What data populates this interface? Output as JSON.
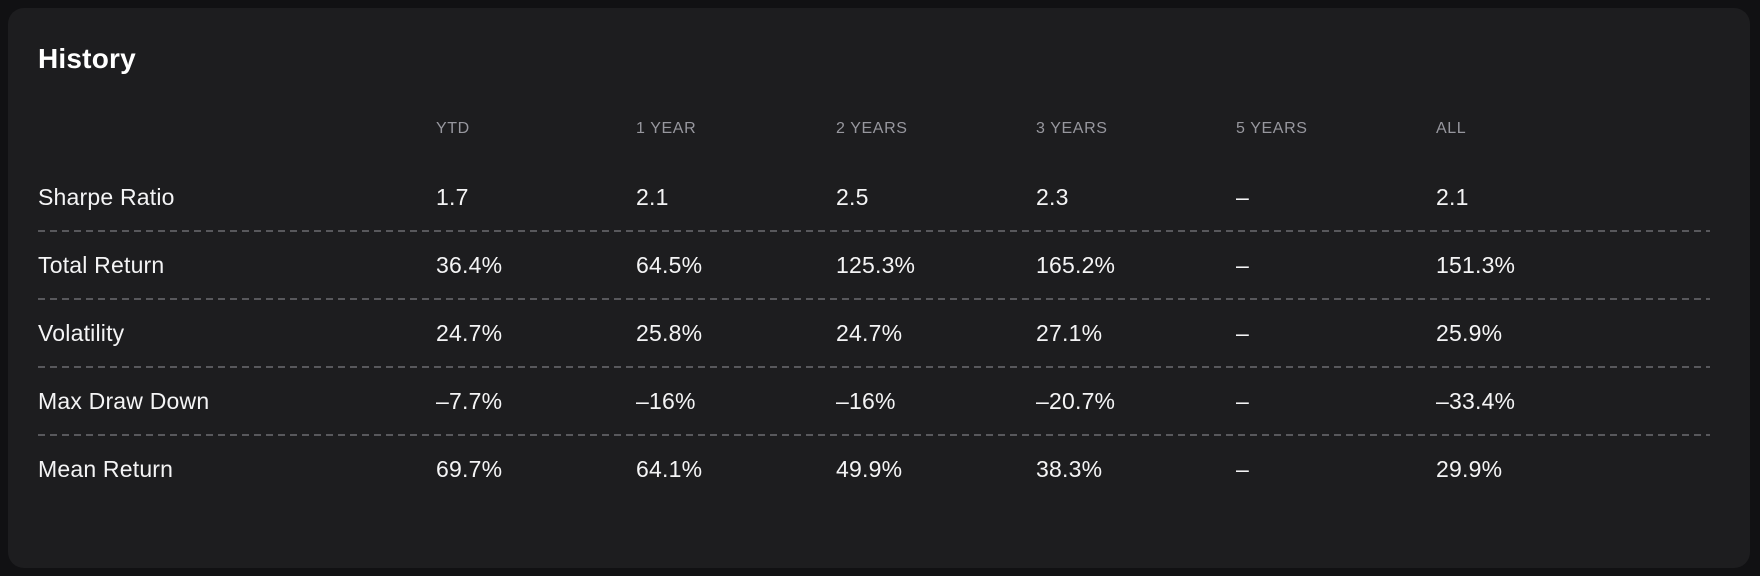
{
  "card": {
    "title": "History"
  },
  "colors": {
    "page_bg": "#111113",
    "card_bg": "#1d1d1f",
    "title_color": "#ffffff",
    "header_color": "#97979e",
    "text_color": "#f4f4f5",
    "separator_color": "#58585c"
  },
  "table": {
    "columns": [
      "YTD",
      "1 YEAR",
      "2 YEARS",
      "3 YEARS",
      "5 YEARS",
      "ALL"
    ],
    "empty_value": "–",
    "rows": [
      {
        "label": "Sharpe Ratio",
        "values": [
          "1.7",
          "2.1",
          "2.5",
          "2.3",
          "–",
          "2.1"
        ]
      },
      {
        "label": "Total Return",
        "values": [
          "36.4%",
          "64.5%",
          "125.3%",
          "165.2%",
          "–",
          "151.3%"
        ]
      },
      {
        "label": "Volatility",
        "values": [
          "24.7%",
          "25.8%",
          "24.7%",
          "27.1%",
          "–",
          "25.9%"
        ]
      },
      {
        "label": "Max Draw Down",
        "values": [
          "–7.7%",
          "–16%",
          "–16%",
          "–20.7%",
          "–",
          "–33.4%"
        ]
      },
      {
        "label": "Mean Return",
        "values": [
          "69.7%",
          "64.1%",
          "49.9%",
          "38.3%",
          "–",
          "29.9%"
        ]
      }
    ]
  }
}
